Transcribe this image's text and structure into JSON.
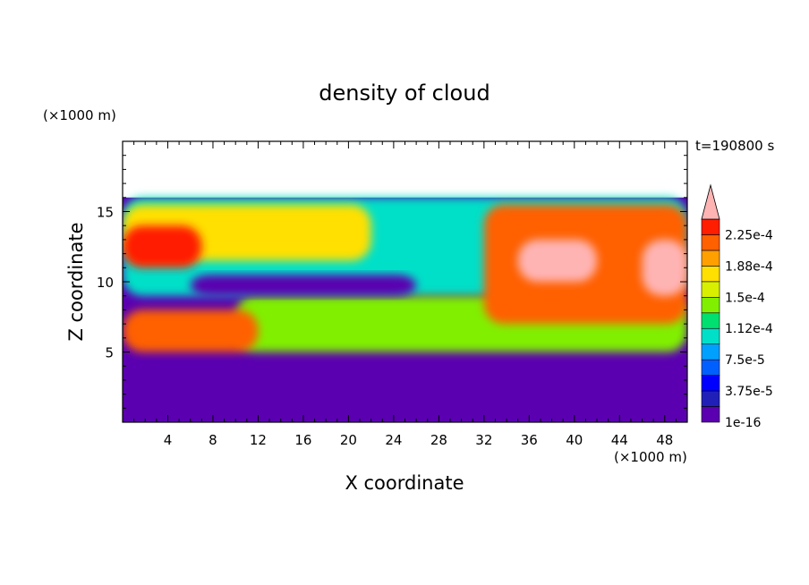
{
  "chart_data": {
    "type": "heatmap",
    "title": "density of cloud",
    "time_label": "t=190800 s",
    "xlabel": "X coordinate",
    "ylabel": "Z coordinate",
    "x_unit": "(×1000 m)",
    "y_unit": "(×1000 m)",
    "xlim": [
      0,
      50
    ],
    "ylim": [
      0,
      20
    ],
    "x_ticks": [
      4,
      8,
      12,
      16,
      20,
      24,
      28,
      32,
      36,
      40,
      44,
      48
    ],
    "y_ticks": [
      5,
      10,
      15
    ],
    "grid": false,
    "colorbar": {
      "position": "right",
      "extend": "max",
      "labels": [
        "1e-16",
        "3.75e-5",
        "7.5e-5",
        "1.12e-4",
        "1.5e-4",
        "1.88e-4",
        "2.25e-4"
      ],
      "levels": [
        1e-16,
        1.875e-05,
        3.75e-05,
        5.625e-05,
        7.5e-05,
        9.375e-05,
        0.0001125,
        0.00013125,
        0.00015,
        0.00016875,
        0.0001875,
        0.00020625,
        0.000225,
        0.00024375
      ],
      "colors": [
        "#5a00b0",
        "#2020b8",
        "#0000ff",
        "#0060ff",
        "#00a0ff",
        "#00e0c8",
        "#00e070",
        "#80f000",
        "#d8f000",
        "#ffe000",
        "#ffa000",
        "#ff6000",
        "#ff1e00",
        "#ffb4b4"
      ]
    },
    "field_summary": {
      "domain_top_z": 16,
      "background_value": 1e-16,
      "regions": [
        {
          "x": [
            0,
            50
          ],
          "z": [
            0,
            16
          ],
          "level": 0
        },
        {
          "x": [
            0,
            50
          ],
          "z": [
            9,
            16
          ],
          "level": 5
        },
        {
          "x": [
            0,
            22
          ],
          "z": [
            11.5,
            15.5
          ],
          "level": 9
        },
        {
          "x": [
            0,
            7
          ],
          "z": [
            11,
            14
          ],
          "level": 12
        },
        {
          "x": [
            10,
            50
          ],
          "z": [
            5,
            9
          ],
          "level": 7
        },
        {
          "x": [
            0,
            12
          ],
          "z": [
            5,
            8
          ],
          "level": 11
        },
        {
          "x": [
            32,
            50
          ],
          "z": [
            7,
            15.5
          ],
          "level": 11
        },
        {
          "x": [
            35,
            42
          ],
          "z": [
            10,
            13
          ],
          "level": 13
        },
        {
          "x": [
            46,
            50
          ],
          "z": [
            9,
            13
          ],
          "level": 13
        },
        {
          "x": [
            6,
            26
          ],
          "z": [
            9,
            10.5
          ],
          "level": 0
        }
      ]
    }
  }
}
